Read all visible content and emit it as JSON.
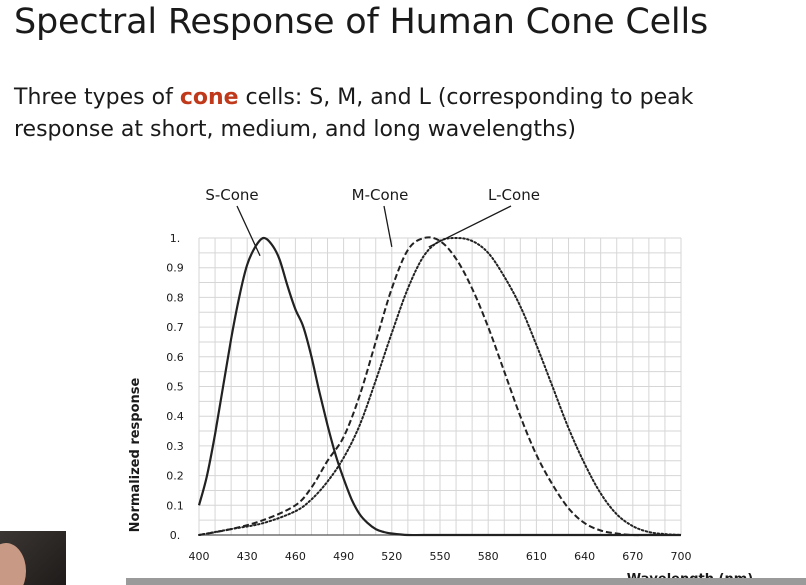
{
  "slide": {
    "title": "Spectral Response of Human Cone Cells",
    "body_prefix": "Three types of ",
    "body_highlight": "cone",
    "body_suffix": " cells: S, M, and L (corresponding to peak response at short, medium, and long wavelengths)"
  },
  "colors": {
    "highlight": "#c0391b",
    "curve": "#222222",
    "grid": "#d6d6d6"
  },
  "chart_data": {
    "type": "line",
    "title": "",
    "xlabel": "Wavelength (nm)",
    "ylabel": "Normalized response",
    "xlim": [
      400,
      700
    ],
    "ylim": [
      0,
      1
    ],
    "grid": true,
    "xticks": [
      400,
      430,
      460,
      490,
      520,
      550,
      580,
      610,
      640,
      670,
      700
    ],
    "xtick_labels": [
      "400",
      "430",
      "460",
      "490",
      "520",
      "550",
      "580",
      "610",
      "640",
      "670",
      "700"
    ],
    "yticks": [
      0,
      0.1,
      0.2,
      0.3,
      0.4,
      0.5,
      0.6,
      0.7,
      0.8,
      0.9,
      1
    ],
    "ytick_labels": [
      "0.",
      "0.1",
      "0.2",
      "0.3",
      "0.4",
      "0.5",
      "0.6",
      "0.7",
      "0.8",
      "0.9",
      "1."
    ],
    "series": [
      {
        "name": "S-Cone",
        "style": "solid",
        "x": [
          400,
          405,
          410,
          415,
          420,
          425,
          430,
          435,
          440,
          445,
          450,
          455,
          460,
          465,
          470,
          475,
          480,
          485,
          490,
          495,
          500,
          505,
          510,
          515,
          520,
          530,
          540,
          560,
          600,
          650,
          700
        ],
        "y": [
          0.1,
          0.2,
          0.34,
          0.5,
          0.66,
          0.8,
          0.91,
          0.97,
          1.0,
          0.98,
          0.93,
          0.84,
          0.76,
          0.7,
          0.6,
          0.48,
          0.37,
          0.27,
          0.19,
          0.12,
          0.07,
          0.04,
          0.02,
          0.01,
          0.005,
          0,
          0,
          0,
          0,
          0,
          0
        ]
      },
      {
        "name": "M-Cone",
        "style": "dashed",
        "x": [
          400,
          420,
          440,
          460,
          470,
          480,
          490,
          500,
          510,
          520,
          530,
          540,
          550,
          560,
          570,
          580,
          590,
          600,
          610,
          620,
          630,
          640,
          650,
          660,
          670,
          680,
          700
        ],
        "y": [
          0,
          0.02,
          0.05,
          0.1,
          0.16,
          0.25,
          0.33,
          0.47,
          0.65,
          0.83,
          0.96,
          1.0,
          0.99,
          0.93,
          0.83,
          0.7,
          0.55,
          0.4,
          0.27,
          0.17,
          0.09,
          0.04,
          0.015,
          0.005,
          0,
          0,
          0
        ]
      },
      {
        "name": "L-Cone",
        "style": "dotted",
        "x": [
          400,
          420,
          440,
          460,
          470,
          480,
          490,
          500,
          510,
          520,
          530,
          540,
          550,
          560,
          570,
          580,
          590,
          600,
          610,
          620,
          630,
          640,
          650,
          660,
          670,
          680,
          690,
          700
        ],
        "y": [
          0,
          0.02,
          0.04,
          0.08,
          0.12,
          0.18,
          0.26,
          0.37,
          0.52,
          0.68,
          0.83,
          0.94,
          0.99,
          1.0,
          0.99,
          0.95,
          0.87,
          0.77,
          0.64,
          0.5,
          0.36,
          0.24,
          0.14,
          0.07,
          0.03,
          0.01,
          0.003,
          0
        ]
      }
    ],
    "curve_labels": [
      {
        "text": "S-Cone",
        "series": "S-Cone",
        "points_to": [
          438,
          0.94
        ]
      },
      {
        "text": "M-Cone",
        "series": "M-Cone",
        "points_to": [
          520,
          0.97
        ]
      },
      {
        "text": "L-Cone",
        "series": "L-Cone",
        "points_to": [
          543,
          0.97
        ]
      }
    ]
  }
}
